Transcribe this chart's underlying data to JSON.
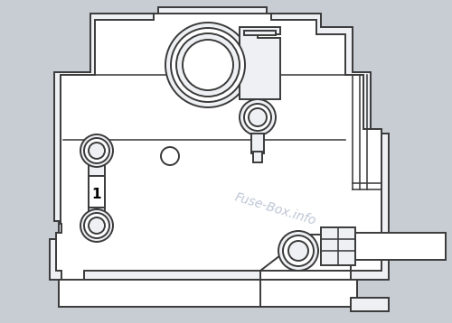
{
  "bg_color": "#c8ccd3",
  "line_color": "#3a3a3a",
  "fill_light": "#eef0f3",
  "fill_white": "#ffffff",
  "lw": 1.4,
  "watermark_text": "Fuse-Box.info",
  "watermark_color": "#a8b4c8",
  "label_1": "1",
  "fig_width": 5.0,
  "fig_height": 3.58,
  "dpi": 100
}
